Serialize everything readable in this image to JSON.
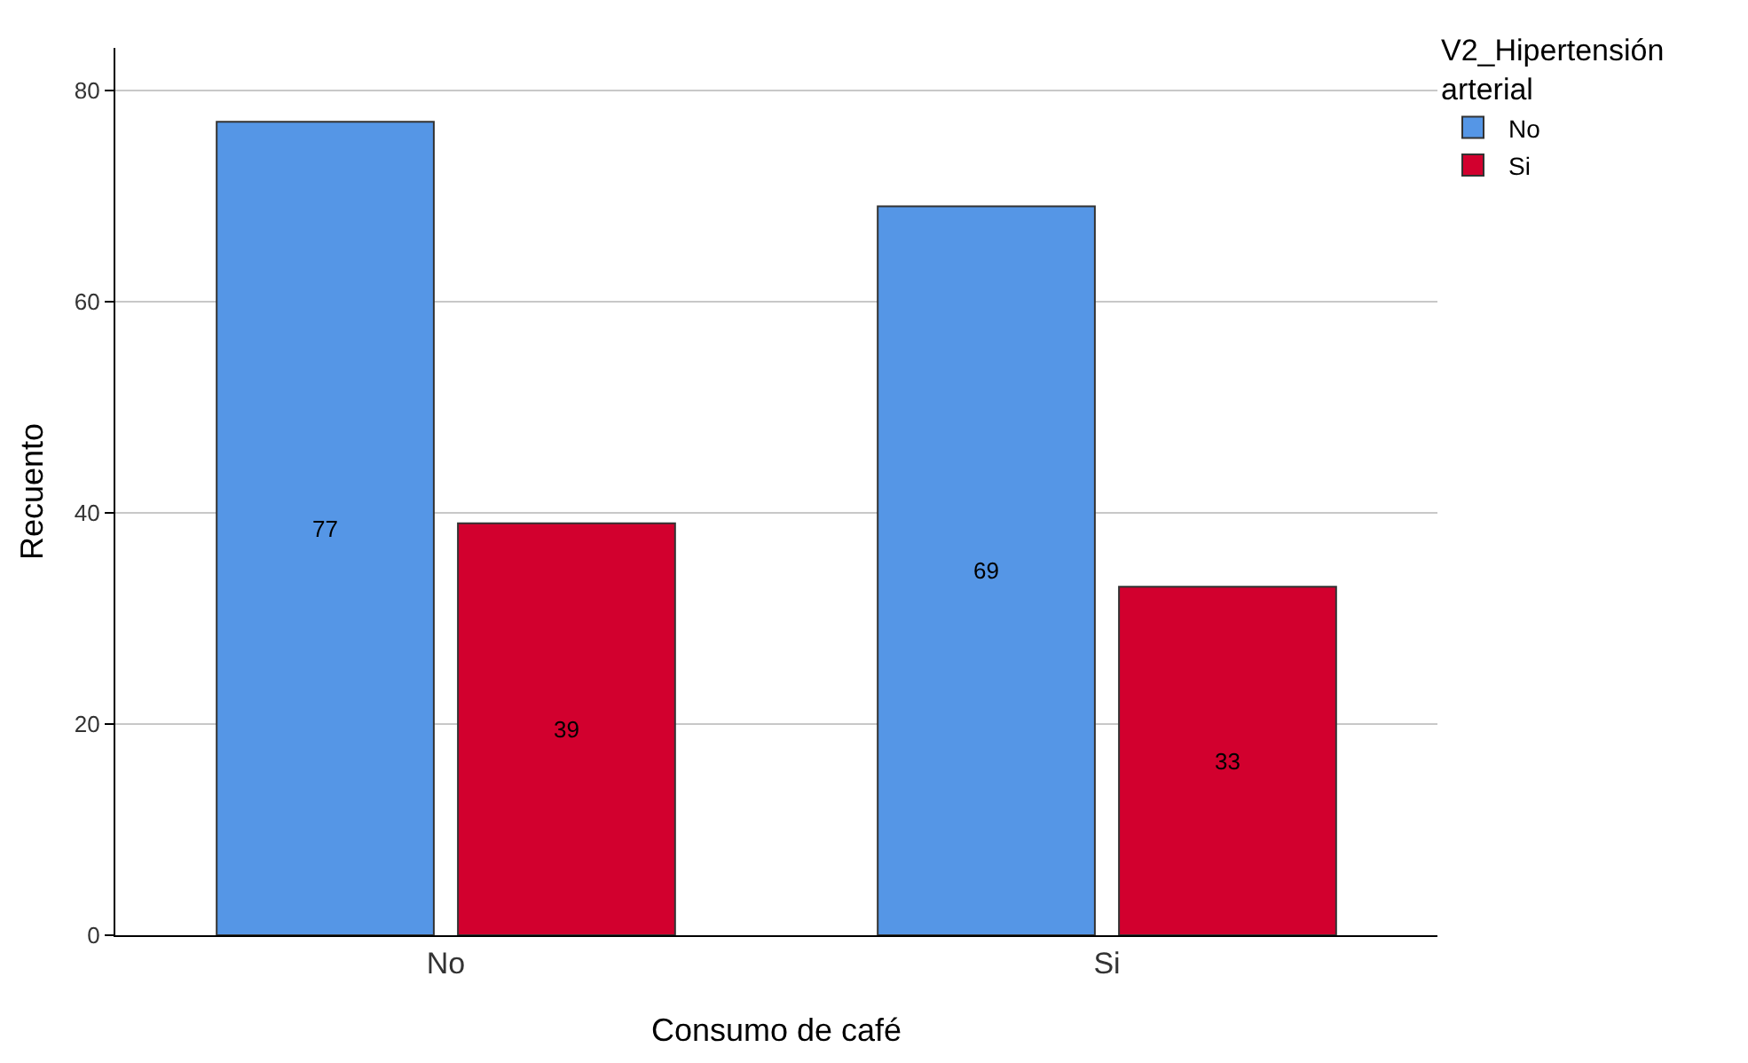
{
  "chart_data": {
    "type": "bar",
    "xlabel": "Consumo de café",
    "ylabel": "Recuento",
    "legend_title": "V2_Hipertensión arterial",
    "categories": [
      "No",
      "Si"
    ],
    "series": [
      {
        "name": "No",
        "color": "#5596e6",
        "values": [
          77,
          69
        ]
      },
      {
        "name": "Si",
        "color": "#d2002e",
        "values": [
          39,
          33
        ]
      }
    ],
    "ylim": [
      0,
      84
    ],
    "yticks": [
      0,
      20,
      40,
      60,
      80
    ],
    "grid": "y",
    "legend": "top right",
    "data_labels": true
  }
}
